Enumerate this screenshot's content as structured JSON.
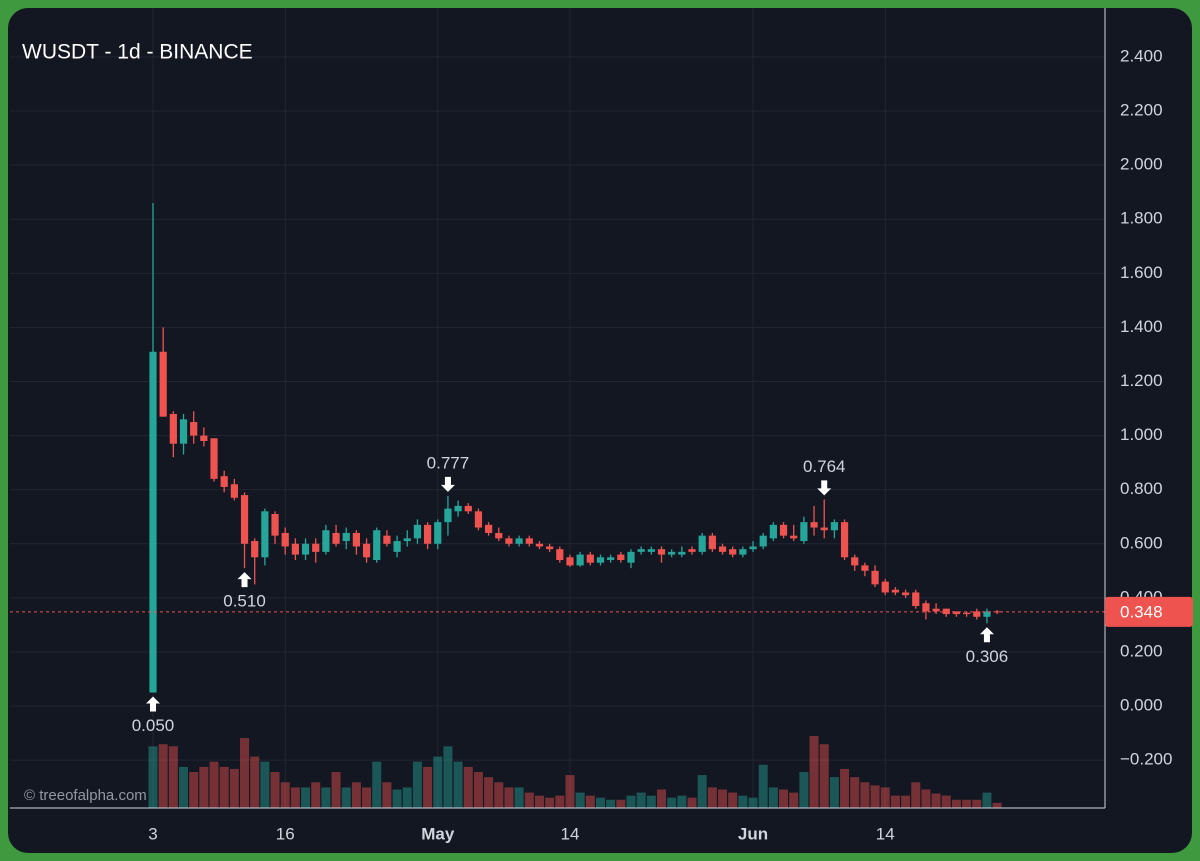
{
  "chart_data": {
    "type": "candlestick",
    "title": "WUSDT - 1d - BINANCE",
    "watermark": "© treeofalpha.com",
    "up_color": "#26a69a",
    "down_color": "#ef5350",
    "grid": true,
    "categories": [
      "3",
      null,
      null,
      null,
      null,
      null,
      null,
      null,
      null,
      null,
      null,
      null,
      null,
      "16",
      null,
      null,
      null,
      null,
      null,
      null,
      null,
      null,
      null,
      null,
      null,
      null,
      null,
      null,
      "May",
      null,
      null,
      null,
      null,
      null,
      null,
      null,
      null,
      null,
      null,
      null,
      null,
      "14",
      null,
      null,
      null,
      null,
      null,
      null,
      null,
      null,
      null,
      null,
      null,
      null,
      null,
      null,
      null,
      null,
      null,
      "Jun",
      null,
      null,
      null,
      null,
      null,
      null,
      null,
      null,
      null,
      null,
      null,
      null,
      "14",
      null,
      null,
      null,
      null,
      null,
      null,
      null,
      null,
      null,
      null,
      null
    ],
    "open": [
      0.05,
      1.31,
      1.08,
      0.97,
      1.05,
      1.0,
      0.99,
      0.85,
      0.82,
      0.78,
      0.61,
      0.55,
      0.71,
      0.64,
      0.6,
      0.56,
      0.6,
      0.57,
      0.64,
      0.61,
      0.64,
      0.6,
      0.54,
      0.63,
      0.57,
      0.61,
      0.62,
      0.67,
      0.6,
      0.68,
      0.72,
      0.74,
      0.72,
      0.67,
      0.64,
      0.62,
      0.6,
      0.62,
      0.6,
      0.59,
      0.58,
      0.55,
      0.52,
      0.56,
      0.53,
      0.54,
      0.56,
      0.53,
      0.57,
      0.57,
      0.58,
      0.56,
      0.56,
      0.58,
      0.57,
      0.63,
      0.59,
      0.58,
      0.56,
      0.58,
      0.59,
      0.62,
      0.67,
      0.63,
      0.61,
      0.68,
      0.66,
      0.65,
      0.68,
      0.55,
      0.52,
      0.5,
      0.46,
      0.43,
      0.42,
      0.42,
      0.38,
      0.36,
      0.36,
      0.35,
      0.345,
      0.35,
      0.33,
      0.35
    ],
    "high": [
      1.86,
      1.4,
      1.09,
      1.08,
      1.09,
      1.03,
      0.99,
      0.87,
      0.84,
      0.79,
      0.62,
      0.73,
      0.72,
      0.66,
      0.62,
      0.62,
      0.62,
      0.67,
      0.67,
      0.66,
      0.65,
      0.62,
      0.66,
      0.65,
      0.63,
      0.65,
      0.69,
      0.68,
      0.69,
      0.777,
      0.76,
      0.75,
      0.73,
      0.68,
      0.66,
      0.63,
      0.63,
      0.63,
      0.61,
      0.6,
      0.59,
      0.56,
      0.57,
      0.57,
      0.56,
      0.56,
      0.57,
      0.58,
      0.59,
      0.59,
      0.59,
      0.58,
      0.59,
      0.59,
      0.64,
      0.64,
      0.6,
      0.59,
      0.59,
      0.61,
      0.64,
      0.68,
      0.68,
      0.67,
      0.7,
      0.74,
      0.764,
      0.69,
      0.69,
      0.56,
      0.53,
      0.52,
      0.47,
      0.44,
      0.43,
      0.43,
      0.39,
      0.38,
      0.36,
      0.35,
      0.35,
      0.36,
      0.36,
      0.355
    ],
    "low": [
      0.05,
      1.07,
      0.92,
      0.93,
      0.97,
      0.96,
      0.83,
      0.79,
      0.76,
      0.51,
      0.45,
      0.52,
      0.6,
      0.56,
      0.54,
      0.54,
      0.53,
      0.56,
      0.59,
      0.58,
      0.56,
      0.53,
      0.53,
      0.59,
      0.55,
      0.59,
      0.6,
      0.58,
      0.58,
      0.63,
      0.7,
      0.71,
      0.65,
      0.63,
      0.61,
      0.59,
      0.59,
      0.59,
      0.58,
      0.57,
      0.53,
      0.515,
      0.515,
      0.52,
      0.52,
      0.53,
      0.53,
      0.51,
      0.56,
      0.56,
      0.53,
      0.55,
      0.55,
      0.56,
      0.56,
      0.57,
      0.56,
      0.55,
      0.55,
      0.57,
      0.58,
      0.61,
      0.62,
      0.61,
      0.6,
      0.63,
      0.62,
      0.62,
      0.54,
      0.5,
      0.48,
      0.44,
      0.41,
      0.41,
      0.4,
      0.36,
      0.32,
      0.34,
      0.33,
      0.33,
      0.33,
      0.32,
      0.306,
      0.34
    ],
    "close": [
      1.31,
      1.07,
      0.97,
      1.06,
      1.0,
      0.98,
      0.84,
      0.81,
      0.77,
      0.6,
      0.55,
      0.72,
      0.63,
      0.59,
      0.56,
      0.6,
      0.57,
      0.65,
      0.6,
      0.64,
      0.59,
      0.55,
      0.65,
      0.6,
      0.61,
      0.62,
      0.67,
      0.6,
      0.68,
      0.73,
      0.74,
      0.72,
      0.66,
      0.64,
      0.62,
      0.6,
      0.62,
      0.6,
      0.59,
      0.58,
      0.54,
      0.52,
      0.56,
      0.53,
      0.55,
      0.55,
      0.54,
      0.57,
      0.58,
      0.58,
      0.56,
      0.57,
      0.57,
      0.57,
      0.63,
      0.58,
      0.57,
      0.56,
      0.58,
      0.59,
      0.63,
      0.67,
      0.63,
      0.62,
      0.68,
      0.66,
      0.65,
      0.68,
      0.55,
      0.52,
      0.5,
      0.45,
      0.42,
      0.42,
      0.41,
      0.37,
      0.35,
      0.35,
      0.34,
      0.34,
      0.34,
      0.33,
      0.35,
      0.348
    ],
    "volume": [
      60,
      62,
      60,
      40,
      35,
      40,
      45,
      40,
      38,
      68,
      50,
      45,
      35,
      25,
      20,
      20,
      25,
      20,
      35,
      20,
      25,
      20,
      45,
      25,
      18,
      20,
      45,
      40,
      50,
      60,
      45,
      40,
      35,
      30,
      25,
      20,
      20,
      15,
      12,
      10,
      12,
      32,
      15,
      12,
      10,
      8,
      8,
      12,
      15,
      12,
      18,
      10,
      12,
      10,
      32,
      20,
      18,
      15,
      12,
      10,
      42,
      20,
      18,
      15,
      35,
      70,
      62,
      30,
      38,
      30,
      25,
      22,
      20,
      12,
      12,
      25,
      18,
      14,
      12,
      8,
      8,
      8,
      15,
      5
    ],
    "ylim": [
      -0.377,
      2.581
    ],
    "yticks": [
      {
        "value": -0.2,
        "label": "−0.200"
      },
      {
        "value": 0,
        "label": "0.000"
      },
      {
        "value": 0.2,
        "label": "0.200"
      },
      {
        "value": 0.4,
        "label": "0.400"
      },
      {
        "value": 0.6,
        "label": "0.600"
      },
      {
        "value": 0.8,
        "label": "0.800"
      },
      {
        "value": 1.0,
        "label": "1.000"
      },
      {
        "value": 1.2,
        "label": "1.200"
      },
      {
        "value": 1.4,
        "label": "1.400"
      },
      {
        "value": 1.6,
        "label": "1.600"
      },
      {
        "value": 1.8,
        "label": "1.800"
      },
      {
        "value": 2.0,
        "label": "2.000"
      },
      {
        "value": 2.2,
        "label": "2.200"
      },
      {
        "value": 2.4,
        "label": "2.400"
      }
    ],
    "high_markers": [
      {
        "value": 0.777,
        "label": "0.777"
      },
      {
        "value": 0.764,
        "label": "0.764"
      }
    ],
    "low_markers": [
      {
        "value": 0.05,
        "label": "0.050"
      },
      {
        "value": 0.51,
        "label": "0.510"
      },
      {
        "value": 0.306,
        "label": "0.306"
      }
    ],
    "last_price": {
      "value": 0.348,
      "label": "0.348"
    }
  }
}
